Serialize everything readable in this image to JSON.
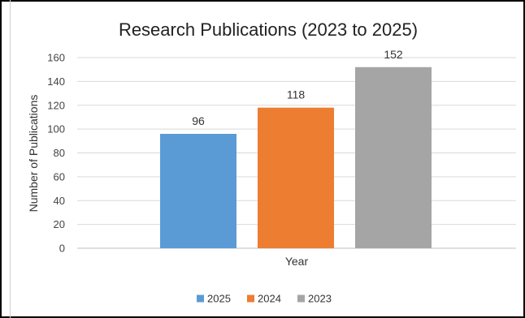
{
  "chart_data": {
    "type": "bar",
    "title": "Research Publications (2023 to 2025)",
    "xlabel": "Year",
    "ylabel": "Number of Publications",
    "categories": [
      "2025",
      "2024",
      "2023"
    ],
    "values": [
      96,
      118,
      152
    ],
    "colors": [
      "#5B9BD5",
      "#ED7D31",
      "#A5A5A5"
    ],
    "ylim": [
      0,
      160
    ],
    "yticks": [
      0,
      20,
      40,
      60,
      80,
      100,
      120,
      140,
      160
    ],
    "grid": true,
    "legend_position": "bottom",
    "data_labels": true
  }
}
